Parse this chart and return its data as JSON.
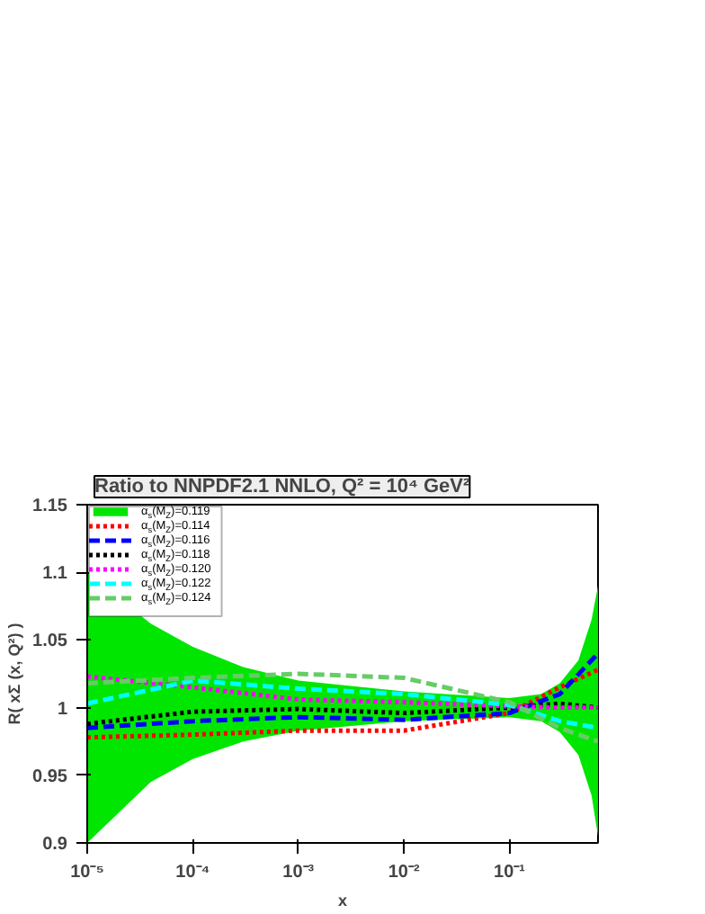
{
  "chart_data": {
    "type": "line",
    "title": "Ratio to NNPDF2.1 NNLO, Q² = 10⁴ GeV²",
    "xlabel": "x",
    "ylabel": "R( xΣ (x, Q²) )",
    "log": "x",
    "xlim": [
      1e-05,
      0.69
    ],
    "xticks": [
      {
        "value": 1e-05,
        "label": "10⁻⁵"
      },
      {
        "value": 0.0001,
        "label": "10⁻⁴"
      },
      {
        "value": 0.001,
        "label": "10⁻³"
      },
      {
        "value": 0.01,
        "label": "10⁻²"
      },
      {
        "value": 0.1,
        "label": "10⁻¹"
      }
    ],
    "ylim": [
      0.9,
      1.15
    ],
    "yticks": [
      0.9,
      0.95,
      1,
      1.05,
      1.1,
      1.15
    ],
    "grid": false,
    "legend": "top left",
    "x": [
      1e-05,
      0.0001,
      0.001,
      0.01,
      0.1,
      0.3,
      0.69
    ],
    "series": [
      {
        "name": "α$_{s}$(M$_{Z}$)=0.119",
        "type": "area",
        "color": "#00e600",
        "x": [
          1e-05,
          4e-05,
          0.0001,
          0.0003,
          0.001,
          0.01,
          0.1,
          0.2,
          0.3,
          0.45,
          0.6,
          0.69
        ],
        "values": [
          null,
          null,
          null,
          null,
          null,
          null,
          null,
          null,
          null,
          null,
          null,
          null
        ],
        "lower": [
          0.9,
          0.945,
          0.962,
          0.975,
          0.983,
          0.99,
          0.993,
          0.99,
          0.982,
          0.965,
          0.935,
          0.905
        ],
        "upper": [
          1.1,
          1.062,
          1.045,
          1.03,
          1.02,
          1.012,
          1.007,
          1.01,
          1.018,
          1.035,
          1.065,
          1.09
        ]
      },
      {
        "name": "α$_{s}$(M$_{Z}$)=0.114",
        "color": "#ff0000",
        "line_style": "dotted",
        "values": [
          0.978,
          0.98,
          0.983,
          0.983,
          0.996,
          1.015,
          1.028
        ]
      },
      {
        "name": "α$_{s}$(M$_{Z}$)=0.116",
        "color": "#0000ff",
        "line_style": "dashed",
        "values": [
          0.985,
          0.99,
          0.993,
          0.991,
          0.996,
          1.01,
          1.04
        ]
      },
      {
        "name": "α$_{s}$(M$_{Z}$)=0.118",
        "color": "#000000",
        "line_style": "dotted",
        "values": [
          0.988,
          0.997,
          0.999,
          0.996,
          1.0,
          1.003,
          1.0
        ]
      },
      {
        "name": "α$_{s}$(M$_{Z}$)=0.120",
        "color": "#ff00ff",
        "line_style": "dotted",
        "values": [
          1.023,
          1.015,
          1.006,
          1.004,
          1.001,
          1.0,
          1.0
        ]
      },
      {
        "name": "α$_{s}$(M$_{Z}$)=0.122",
        "color": "#00ffff",
        "line_style": "dashed",
        "values": [
          1.003,
          1.02,
          1.014,
          1.01,
          1.002,
          0.99,
          0.985
        ]
      },
      {
        "name": "α$_{s}$(M$_{Z}$)=0.124",
        "color": "#66cc66",
        "line_style": "dashed",
        "values": [
          1.018,
          1.022,
          1.025,
          1.022,
          1.004,
          0.985,
          0.975
        ]
      }
    ]
  }
}
